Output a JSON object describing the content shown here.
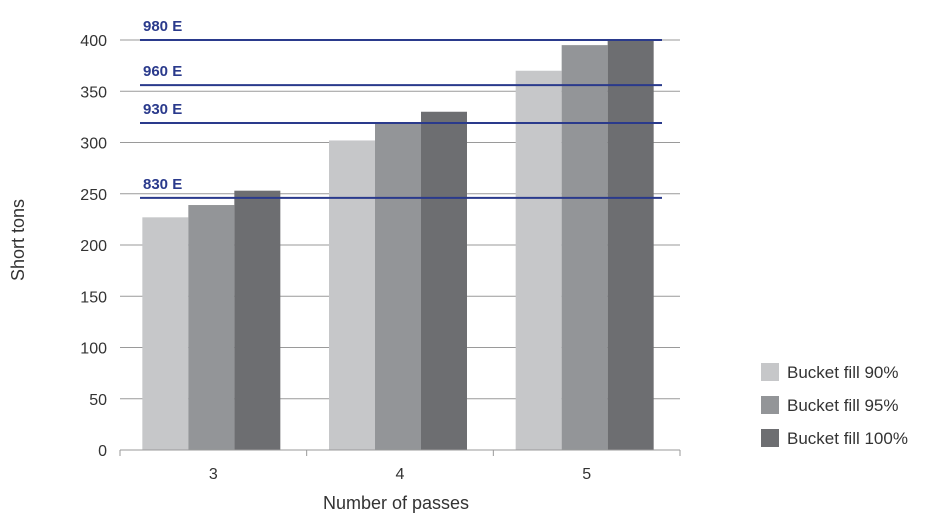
{
  "chart_data": {
    "type": "bar",
    "categories": [
      "3",
      "4",
      "5"
    ],
    "series": [
      {
        "name": "Bucket fill 90%",
        "values": [
          227,
          302,
          370
        ],
        "color": "#c6c7c9"
      },
      {
        "name": "Bucket fill 95%",
        "values": [
          239,
          319,
          395
        ],
        "color": "#939598"
      },
      {
        "name": "Bucket fill 100%",
        "values": [
          253,
          330,
          400
        ],
        "color": "#6d6e71"
      }
    ],
    "reference_lines": [
      {
        "label": "980 E",
        "value": 400
      },
      {
        "label": "960 E",
        "value": 356
      },
      {
        "label": "930 E",
        "value": 319
      },
      {
        "label": "830 E",
        "value": 246
      }
    ],
    "reference_line_color": "#2a3a8c",
    "xlabel": "Number of passes",
    "ylabel": "Short tons",
    "ylim": [
      0,
      400
    ],
    "yticks": [
      0,
      50,
      100,
      150,
      200,
      250,
      300,
      350,
      400
    ],
    "grid": true,
    "legend_position": "right"
  }
}
